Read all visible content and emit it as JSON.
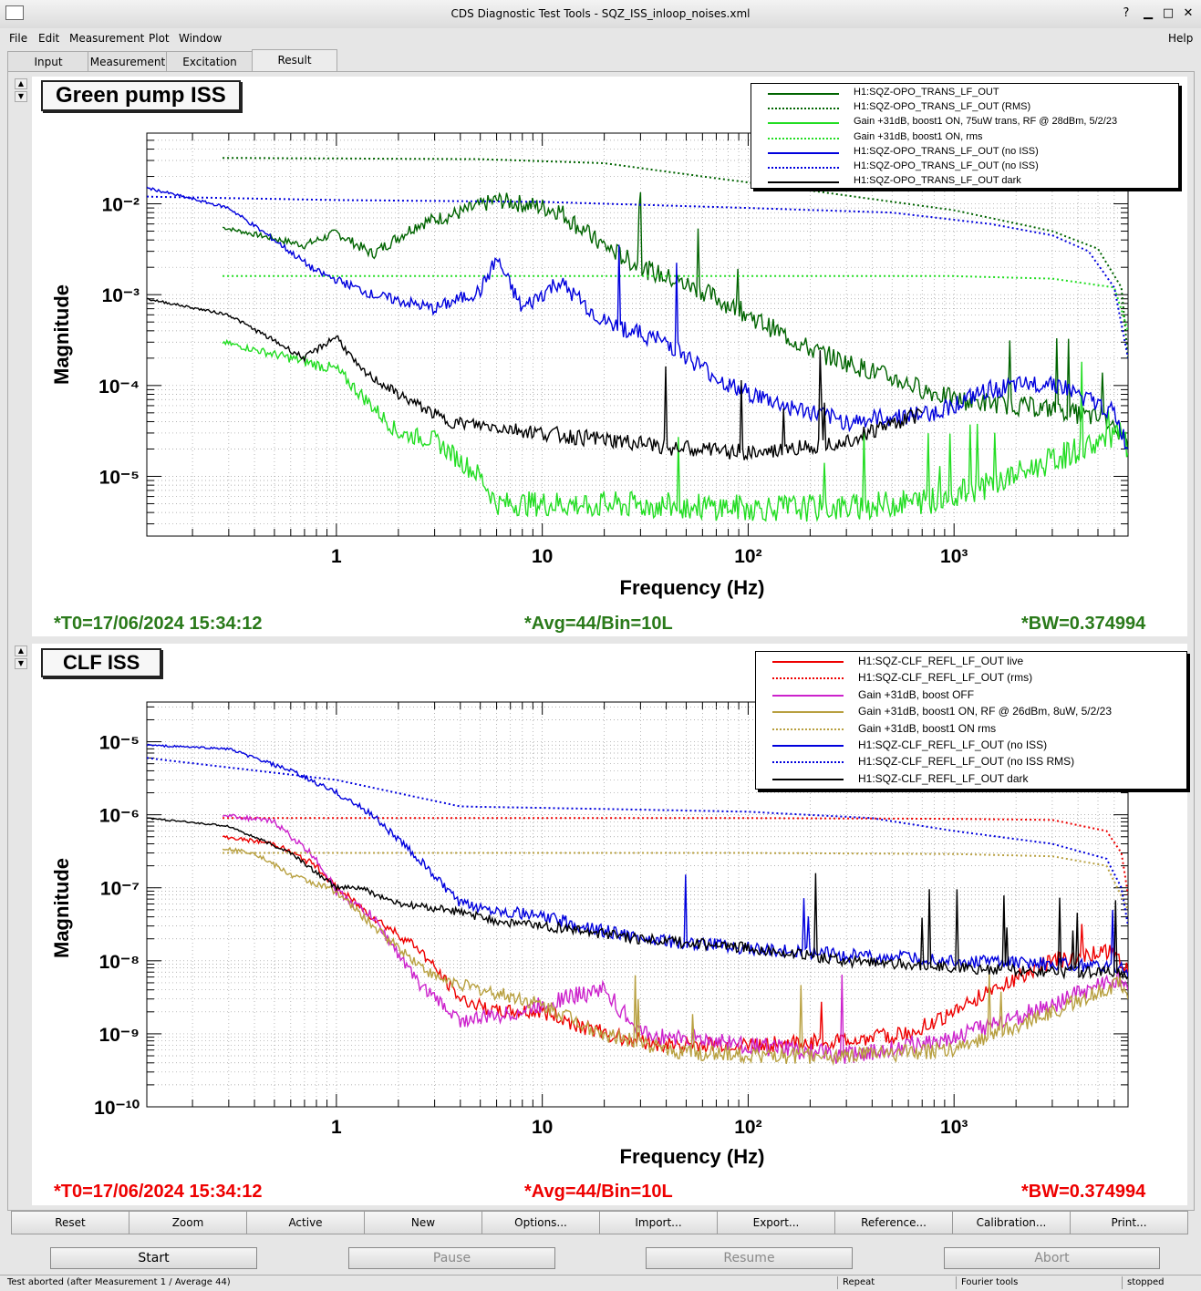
{
  "window": {
    "title": "CDS Diagnostic Test Tools - SQZ_ISS_inloop_noises.xml"
  },
  "menu": {
    "file": "File",
    "edit": "Edit",
    "measurement": "Measurement",
    "plot": "Plot",
    "window": "Window",
    "help": "Help"
  },
  "tabs": [
    {
      "label": "Input"
    },
    {
      "label": "Measurement"
    },
    {
      "label": "Excitation"
    },
    {
      "label": "Result"
    }
  ],
  "plots": [
    {
      "title": "Green pump ISS",
      "ylabel": "Magnitude",
      "xlabel": "Frequency (Hz)",
      "x_ticks": [
        "1",
        "10",
        "10²",
        "10³"
      ],
      "y_ticks": [
        "10⁻²",
        "10⁻³",
        "10⁻⁴",
        "10⁻⁵"
      ],
      "info": {
        "t0": "*T0=17/06/2024 15:34:12",
        "avg": "*Avg=44/Bin=10L",
        "bw": "*BW=0.374994"
      },
      "info_color": "#2a7a1a",
      "legend": [
        {
          "label": "H1:SQZ-OPO_TRANS_LF_OUT",
          "color": "#006400",
          "style": "solid"
        },
        {
          "label": "H1:SQZ-OPO_TRANS_LF_OUT (RMS)",
          "color": "#006400",
          "style": "dotted"
        },
        {
          "label": "Gain +31dB, boost1 ON, 75uW trans, RF @ 28dBm, 5/2/23",
          "color": "#22dd22",
          "style": "solid"
        },
        {
          "label": "Gain +31dB, boost1 ON, rms",
          "color": "#22dd22",
          "style": "dotted"
        },
        {
          "label": "H1:SQZ-OPO_TRANS_LF_OUT (no ISS)",
          "color": "#0000dd",
          "style": "solid"
        },
        {
          "label": "H1:SQZ-OPO_TRANS_LF_OUT (no ISS)",
          "color": "#0000dd",
          "style": "dotted"
        },
        {
          "label": "H1:SQZ-OPO_TRANS_LF_OUT dark",
          "color": "#000000",
          "style": "solid"
        }
      ]
    },
    {
      "title": "CLF ISS",
      "ylabel": "Magnitude",
      "xlabel": "Frequency (Hz)",
      "x_ticks": [
        "1",
        "10",
        "10²",
        "10³"
      ],
      "y_ticks": [
        "10⁻⁵",
        "10⁻⁶",
        "10⁻⁷",
        "10⁻⁸",
        "10⁻⁹",
        "10⁻¹⁰"
      ],
      "info": {
        "t0": "*T0=17/06/2024 15:34:12",
        "avg": "*Avg=44/Bin=10L",
        "bw": "*BW=0.374994"
      },
      "info_color": "#ee0000",
      "legend": [
        {
          "label": "H1:SQZ-CLF_REFL_LF_OUT live",
          "color": "#ee0000",
          "style": "solid"
        },
        {
          "label": "H1:SQZ-CLF_REFL_LF_OUT (rms)",
          "color": "#ee0000",
          "style": "dotted"
        },
        {
          "label": "Gain +31dB, boost OFF",
          "color": "#cc22cc",
          "style": "solid"
        },
        {
          "label": "Gain +31dB, boost1 ON, RF @ 26dBm, 8uW, 5/2/23",
          "color": "#b8a040",
          "style": "solid"
        },
        {
          "label": "Gain +31dB, boost1 ON rms",
          "color": "#b8a040",
          "style": "dotted"
        },
        {
          "label": "H1:SQZ-CLF_REFL_LF_OUT (no ISS)",
          "color": "#0000dd",
          "style": "solid"
        },
        {
          "label": "H1:SQZ-CLF_REFL_LF_OUT (no ISS RMS)",
          "color": "#0000dd",
          "style": "dotted"
        },
        {
          "label": "H1:SQZ-CLF_REFL_LF_OUT dark",
          "color": "#000000",
          "style": "solid"
        }
      ]
    }
  ],
  "chart_data": [
    {
      "type": "line",
      "title": "Green pump ISS",
      "xlabel": "Frequency (Hz)",
      "ylabel": "Magnitude",
      "xscale": "log",
      "yscale": "log",
      "xlim": [
        0.12,
        7000
      ],
      "ylim": [
        2.2e-06,
        0.06
      ],
      "series": [
        {
          "name": "H1:SQZ-OPO_TRANS_LF_OUT",
          "color": "#006400",
          "dash": false,
          "jitter": 0.22,
          "x": [
            0.28,
            0.7,
            1.0,
            1.5,
            2.5,
            4,
            6,
            8,
            12,
            18,
            30,
            60,
            100,
            200,
            500,
            1000,
            3000,
            6000,
            7000
          ],
          "y": [
            0.0055,
            0.0035,
            0.0048,
            0.0028,
            0.006,
            0.008,
            0.011,
            0.01,
            0.0085,
            0.004,
            0.002,
            0.0011,
            0.0006,
            0.00025,
            0.00012,
            7e-05,
            5.5e-05,
            4e-05,
            2e-05
          ]
        },
        {
          "name": "H1:SQZ-OPO_TRANS_LF_OUT (RMS)",
          "color": "#006400",
          "dash": true,
          "jitter": 0,
          "x": [
            0.28,
            5,
            20,
            60,
            200,
            1000,
            3000,
            5000,
            6500,
            7000
          ],
          "y": [
            0.032,
            0.031,
            0.028,
            0.02,
            0.014,
            0.0085,
            0.005,
            0.0032,
            0.0012,
            0.0002
          ]
        },
        {
          "name": "Gain +31dB, boost1 ON, 75uW trans, RF @ 28dBm, 5/2/23",
          "color": "#22dd22",
          "dash": false,
          "jitter": 0.3,
          "x": [
            0.28,
            0.6,
            1.0,
            2,
            3,
            5,
            6,
            10,
            30,
            100,
            300,
            800,
            1500,
            3000,
            6500,
            7000
          ],
          "y": [
            0.0003,
            0.0002,
            0.00015,
            3e-05,
            2.5e-05,
            1e-05,
            5e-06,
            5e-06,
            4.8e-06,
            4.5e-06,
            4.5e-06,
            5.5e-06,
            8e-06,
            1.5e-05,
            3e-05,
            1.8e-05
          ]
        },
        {
          "name": "Gain +31dB, boost1 ON, rms",
          "color": "#22dd22",
          "dash": true,
          "jitter": 0,
          "x": [
            0.28,
            100,
            1000,
            3000,
            6000,
            7000
          ],
          "y": [
            0.0016,
            0.0016,
            0.0016,
            0.0015,
            0.0012,
            0.0004
          ]
        },
        {
          "name": "H1:SQZ-OPO_TRANS_LF_OUT (no ISS)",
          "color": "#0000dd",
          "dash": false,
          "jitter": 0.2,
          "x": [
            0.12,
            0.3,
            0.5,
            0.8,
            1.5,
            3,
            5,
            6,
            8,
            12,
            20,
            40,
            80,
            150,
            300,
            800,
            1500,
            3000,
            6000,
            7000
          ],
          "y": [
            0.015,
            0.009,
            0.004,
            0.0018,
            0.001,
            0.0007,
            0.0011,
            0.0025,
            0.0007,
            0.0014,
            0.0005,
            0.0003,
            0.0001,
            6e-05,
            4e-05,
            5e-05,
            9e-05,
            0.00011,
            5e-05,
            2e-05
          ]
        },
        {
          "name": "H1:SQZ-OPO_TRANS_LF_OUT (no ISS)",
          "color": "#0000dd",
          "dash": true,
          "jitter": 0,
          "x": [
            0.12,
            1,
            10,
            100,
            500,
            1500,
            3000,
            4500,
            6000,
            7000
          ],
          "y": [
            0.012,
            0.011,
            0.0105,
            0.009,
            0.008,
            0.006,
            0.0045,
            0.003,
            0.0012,
            0.0002
          ]
        },
        {
          "name": "H1:SQZ-OPO_TRANS_LF_OUT dark",
          "color": "#000000",
          "dash": false,
          "jitter": 0.18,
          "x": [
            0.12,
            0.3,
            0.7,
            1.0,
            1.3,
            2,
            3.5,
            6,
            10,
            20,
            50,
            120,
            300,
            700
          ],
          "y": [
            0.0009,
            0.0006,
            0.0002,
            0.00035,
            0.00015,
            8e-05,
            4e-05,
            3.5e-05,
            3e-05,
            2.5e-05,
            2e-05,
            1.8e-05,
            2.5e-05,
            5e-05
          ]
        }
      ]
    },
    {
      "type": "line",
      "title": "CLF ISS",
      "xlabel": "Frequency (Hz)",
      "ylabel": "Magnitude",
      "xscale": "log",
      "yscale": "log",
      "xlim": [
        0.12,
        7000
      ],
      "ylim": [
        1e-10,
        3.5e-05
      ],
      "series": [
        {
          "name": "H1:SQZ-CLF_REFL_LF_OUT live",
          "color": "#ee0000",
          "dash": false,
          "jitter": 0.22,
          "x": [
            0.28,
            0.5,
            0.8,
            1.0,
            1.5,
            2.5,
            4,
            6,
            10,
            20,
            40,
            100,
            300,
            600,
            1000,
            1500,
            3000,
            6000,
            7000
          ],
          "y": [
            5e-07,
            4e-07,
            2e-07,
            1e-07,
            4e-08,
            1.5e-08,
            3e-09,
            2e-09,
            2e-09,
            1e-09,
            7e-10,
            7e-10,
            8e-10,
            1e-09,
            2e-09,
            4e-09,
            1e-08,
            1.4e-08,
            7e-09
          ]
        },
        {
          "name": "H1:SQZ-CLF_REFL_LF_OUT (rms)",
          "color": "#ee0000",
          "dash": true,
          "jitter": 0,
          "x": [
            0.28,
            100,
            1000,
            3000,
            5500,
            6500,
            7000
          ],
          "y": [
            9e-07,
            9e-07,
            8.8e-07,
            8.5e-07,
            6e-07,
            3e-07,
            8e-08
          ]
        },
        {
          "name": "Gain +31dB, boost OFF",
          "color": "#cc22cc",
          "dash": false,
          "jitter": 0.25,
          "x": [
            0.28,
            0.5,
            0.8,
            1.0,
            1.5,
            2.5,
            4,
            8,
            12,
            20,
            30,
            100,
            300,
            1000,
            3000,
            6500,
            7000
          ],
          "y": [
            1e-06,
            8e-07,
            2.5e-07,
            9e-08,
            4e-08,
            5e-09,
            1.5e-09,
            2e-09,
            3e-09,
            4e-09,
            1e-09,
            7e-10,
            5e-10,
            9e-10,
            2.5e-09,
            6e-09,
            4e-09
          ]
        },
        {
          "name": "Gain +31dB, boost1 ON, RF @ 26dBm, 8uW, 5/2/23",
          "color": "#b8a040",
          "dash": false,
          "jitter": 0.22,
          "x": [
            0.28,
            0.4,
            0.6,
            1.0,
            1.5,
            3,
            5,
            8,
            12,
            20,
            40,
            100,
            300,
            1000,
            3000,
            6500,
            7000
          ],
          "y": [
            3.5e-07,
            3e-07,
            1.5e-07,
            9e-08,
            3e-08,
            6e-09,
            4e-09,
            3e-09,
            2e-09,
            1e-09,
            6e-10,
            5e-10,
            5e-10,
            6e-10,
            2e-09,
            5e-09,
            3e-09
          ]
        },
        {
          "name": "Gain +31dB, boost1 ON rms",
          "color": "#b8a040",
          "dash": true,
          "jitter": 0,
          "x": [
            0.28,
            100,
            1000,
            3000,
            5500,
            7000
          ],
          "y": [
            3e-07,
            3e-07,
            2.9e-07,
            2.7e-07,
            2e-07,
            5e-08
          ]
        },
        {
          "name": "H1:SQZ-CLF_REFL_LF_OUT (no ISS)",
          "color": "#0000dd",
          "dash": false,
          "jitter": 0.18,
          "x": [
            0.12,
            0.3,
            0.6,
            1.0,
            1.5,
            2.5,
            4,
            6,
            10,
            30,
            100,
            300,
            1000,
            3000,
            6500,
            7000
          ],
          "y": [
            9e-06,
            8e-06,
            4e-06,
            2e-06,
            1e-06,
            2.5e-07,
            6e-08,
            5e-08,
            4e-08,
            2e-08,
            1.5e-08,
            1.2e-08,
            1e-08,
            9e-09,
            8e-09,
            6e-09
          ]
        },
        {
          "name": "H1:SQZ-CLF_REFL_LF_OUT (no ISS RMS)",
          "color": "#0000dd",
          "dash": true,
          "jitter": 0,
          "x": [
            0.12,
            1,
            4,
            20,
            100,
            400,
            1000,
            3000,
            5500,
            6500,
            7000
          ],
          "y": [
            6e-06,
            3e-06,
            1.3e-06,
            1.2e-06,
            1.1e-06,
            9e-07,
            6e-07,
            4e-07,
            2.5e-07,
            1e-07,
            3e-08
          ]
        },
        {
          "name": "H1:SQZ-CLF_REFL_LF_OUT dark",
          "color": "#000000",
          "dash": false,
          "jitter": 0.15,
          "x": [
            0.12,
            0.3,
            0.6,
            1.0,
            1.3,
            2,
            3.5,
            6,
            10,
            30,
            100,
            300,
            1000,
            3000,
            6500,
            7000
          ],
          "y": [
            9e-07,
            7e-07,
            3e-07,
            1e-07,
            1e-07,
            6e-08,
            5e-08,
            3.5e-08,
            3e-08,
            2e-08,
            1.5e-08,
            1e-08,
            8e-09,
            7e-09,
            7e-09,
            6e-09
          ]
        }
      ]
    }
  ],
  "bottom_buttons": [
    {
      "label": "Reset"
    },
    {
      "label": "Zoom"
    },
    {
      "label": "Active"
    },
    {
      "label": "New"
    },
    {
      "label": "Options..."
    },
    {
      "label": "Import..."
    },
    {
      "label": "Export..."
    },
    {
      "label": "Reference..."
    },
    {
      "label": "Calibration..."
    },
    {
      "label": "Print..."
    }
  ],
  "controls": [
    {
      "label": "Start",
      "enabled": true
    },
    {
      "label": "Pause",
      "enabled": false
    },
    {
      "label": "Resume",
      "enabled": false
    },
    {
      "label": "Abort",
      "enabled": false
    }
  ],
  "status": {
    "message": "Test aborted (after Measurement 1 / Average 44)",
    "repeat": "Repeat",
    "tool": "Fourier tools",
    "state": "stopped"
  }
}
